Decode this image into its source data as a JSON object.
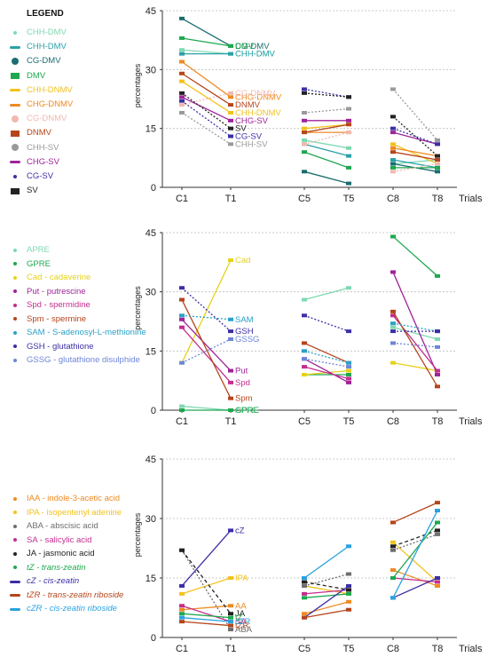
{
  "legend": {
    "title": "LEGEND"
  },
  "panels": [
    {
      "id": "p1",
      "legend_items": [
        {
          "label": "CHH-DMV",
          "color": "#7fd9b2",
          "symbol": "dot"
        },
        {
          "label": "CHH-DMV",
          "color": "#2aa1a7",
          "symbol": "dash"
        },
        {
          "label": "CG-DMV",
          "color": "#1b6d6f",
          "symbol": "bigdot"
        },
        {
          "label": "DMV",
          "color": "#1ea84f",
          "symbol": "square"
        },
        {
          "label": "CHH-DNMV",
          "color": "#f2c21c",
          "symbol": "dash"
        },
        {
          "label": "CHG-DNMV",
          "color": "#ee8a23",
          "symbol": "dash"
        },
        {
          "label": "CG-DNMV",
          "color": "#f0b9b0",
          "symbol": "bigdot"
        },
        {
          "label": "DNMV",
          "color": "#b5451b",
          "symbol": "square"
        },
        {
          "label": "CHH-SV",
          "color": "#9a9a9a",
          "symbol": "bigdot"
        },
        {
          "label": "CHG-SV",
          "color": "#a0239a",
          "symbol": "dash"
        },
        {
          "label": "CG-SV",
          "color": "#3b2fa6",
          "symbol": "dot"
        },
        {
          "label": "SV",
          "color": "#222222",
          "symbol": "square"
        }
      ]
    },
    {
      "id": "p2",
      "legend_items": [
        {
          "label": "APRE",
          "color": "#7fd9b2",
          "symbol": "dot"
        },
        {
          "label": "GPRE",
          "color": "#1ea84f",
          "symbol": "dot"
        },
        {
          "label": "Cad - cadaverine",
          "color": "#e6d21a",
          "symbol": "dot"
        },
        {
          "label": "Put - putrescine",
          "color": "#a0239a",
          "symbol": "dot"
        },
        {
          "label": "Spd - spermidine",
          "color": "#c42e8f",
          "symbol": "dot"
        },
        {
          "label": "Spm - spermine",
          "color": "#b5451b",
          "symbol": "dot"
        },
        {
          "label": "SAM - S-adenosyl-L-methionine",
          "color": "#2aa1c7",
          "symbol": "dot"
        },
        {
          "label": "GSH - glutathione",
          "color": "#3b2fa6",
          "symbol": "dot"
        },
        {
          "label": "GSSG - glutathione disulphide",
          "color": "#6e86d8",
          "symbol": "dot"
        }
      ]
    },
    {
      "id": "p3",
      "legend_items": [
        {
          "label": "IAA - indole-3-acetic acid",
          "color": "#ee8a23",
          "symbol": "dot"
        },
        {
          "label": "IPA - isopentenyl adenine",
          "color": "#f2c21c",
          "symbol": "dot"
        },
        {
          "label": "ABA - abscisic acid",
          "color": "#6e6e6e",
          "symbol": "dot"
        },
        {
          "label": "SA - salicylic acid",
          "color": "#c42e8f",
          "symbol": "dot"
        },
        {
          "label": "JA - jasmonic acid",
          "color": "#222222",
          "symbol": "dot"
        },
        {
          "label": "tZ - trans-zeatin",
          "color": "#1ea84f",
          "symbol": "dot"
        },
        {
          "label": "cZ - cis-zeatin",
          "color": "#3b2fa6",
          "symbol": "dash"
        },
        {
          "label": "tZR - trans-zeatin riboside",
          "color": "#b5451b",
          "symbol": "dash"
        },
        {
          "label": "cZR - cis-zeatin riboside",
          "color": "#2aa1e0",
          "symbol": "dash"
        }
      ]
    }
  ],
  "chart_data": [
    {
      "type": "line",
      "ylabel": "percentages",
      "xlabel": "Trials",
      "x": [
        "C1",
        "T1",
        "C5",
        "T5",
        "C8",
        "T8"
      ],
      "ylim": [
        0,
        45
      ],
      "yticks": [
        0,
        15,
        30,
        45
      ],
      "grid": true,
      "series": [
        {
          "name": "CHH-DMV",
          "color": "#7fd9b2",
          "style": "solid",
          "values": [
            35,
            34,
            12,
            10,
            6,
            7
          ],
          "label": "CHH-DMV"
        },
        {
          "name": "CHH-DMV",
          "color": "#2aa1a7",
          "style": "solid",
          "values": [
            34,
            34,
            11,
            8,
            7,
            5
          ],
          "label": "CHH-DMV"
        },
        {
          "name": "CG-DMV",
          "color": "#1b6d6f",
          "style": "solid",
          "values": [
            43,
            36,
            4,
            1,
            6,
            4
          ],
          "label": "CG-DMV"
        },
        {
          "name": "DMV",
          "color": "#1ea84f",
          "style": "solid",
          "values": [
            38,
            36,
            9,
            5,
            5,
            5
          ],
          "label": "DMV"
        },
        {
          "name": "CHH-DNMV",
          "color": "#f2c21c",
          "style": "solid",
          "values": [
            27,
            19,
            15,
            16,
            11,
            6
          ],
          "label": "CHH-DNMV"
        },
        {
          "name": "CHG-DNMV",
          "color": "#ee8a23",
          "style": "solid",
          "values": [
            32,
            23,
            14,
            14,
            10,
            8
          ],
          "label": "CHG-DNMV"
        },
        {
          "name": "CG-DNMV",
          "color": "#f0b9b0",
          "style": "dotted",
          "values": [
            21,
            24,
            11,
            14,
            4,
            6
          ],
          "label": "CG-DNMV"
        },
        {
          "name": "DNMV",
          "color": "#b5451b",
          "style": "solid",
          "values": [
            29,
            21,
            14,
            16,
            9,
            7
          ],
          "label": "DNMV"
        },
        {
          "name": "CHH-SV",
          "color": "#9a9a9a",
          "style": "dotted",
          "values": [
            19,
            11,
            19,
            20,
            25,
            12
          ],
          "label": "CHH-SV"
        },
        {
          "name": "CHG-SV",
          "color": "#a0239a",
          "style": "solid",
          "values": [
            23,
            17,
            17,
            17,
            14,
            11
          ],
          "label": "CHG-SV"
        },
        {
          "name": "CG-SV",
          "color": "#3b2fa6",
          "style": "dotted",
          "values": [
            22,
            13,
            25,
            23,
            15,
            11
          ],
          "label": "CG-SV"
        },
        {
          "name": "SV",
          "color": "#222222",
          "style": "dotted",
          "values": [
            24,
            15,
            24,
            23,
            18,
            8
          ],
          "label": "SV"
        }
      ]
    },
    {
      "type": "line",
      "ylabel": "percentages",
      "xlabel": "Trials",
      "x": [
        "C1",
        "T1",
        "C5",
        "T5",
        "C8",
        "T8"
      ],
      "ylim": [
        0,
        45
      ],
      "yticks": [
        0,
        15,
        30,
        45
      ],
      "grid": true,
      "series": [
        {
          "name": "APRE",
          "color": "#7fd9b2",
          "style": "solid",
          "values": [
            1,
            0,
            28,
            31,
            21,
            18
          ],
          "label": "APRE"
        },
        {
          "name": "GPRE",
          "color": "#1ea84f",
          "style": "solid",
          "values": [
            0,
            0,
            9,
            9,
            44,
            34
          ],
          "label": "GPRE"
        },
        {
          "name": "Cad",
          "color": "#e6d21a",
          "style": "solid",
          "values": [
            12,
            38,
            9,
            10,
            12,
            10
          ],
          "label": "Cad"
        },
        {
          "name": "Put",
          "color": "#a0239a",
          "style": "solid",
          "values": [
            23,
            10,
            13,
            7,
            35,
            9
          ],
          "label": "Put"
        },
        {
          "name": "Spd",
          "color": "#c42e8f",
          "style": "solid",
          "values": [
            21,
            7,
            11,
            8,
            24,
            10
          ],
          "label": "Spd"
        },
        {
          "name": "Spm",
          "color": "#b5451b",
          "style": "solid",
          "values": [
            28,
            3,
            17,
            12,
            25,
            6
          ],
          "label": "Spm"
        },
        {
          "name": "SAM",
          "color": "#2aa1c7",
          "style": "dotted",
          "values": [
            24,
            23,
            15,
            12,
            22,
            20
          ],
          "label": "SAM"
        },
        {
          "name": "GSH",
          "color": "#3b2fa6",
          "style": "dotted",
          "values": [
            31,
            20,
            24,
            20,
            20,
            20
          ],
          "label": "GSH"
        },
        {
          "name": "GSSG",
          "color": "#6e86d8",
          "style": "dotted",
          "values": [
            12,
            18,
            13,
            11,
            17,
            16
          ],
          "label": "GSSG"
        }
      ]
    },
    {
      "type": "line",
      "ylabel": "percentages",
      "xlabel": "Trials",
      "x": [
        "C1",
        "T1",
        "C5",
        "T5",
        "C8",
        "T8"
      ],
      "ylim": [
        0,
        45
      ],
      "yticks": [
        0,
        15,
        30,
        45
      ],
      "grid": true,
      "series": [
        {
          "name": "IAA",
          "color": "#ee8a23",
          "style": "solid",
          "values": [
            7,
            8,
            6,
            9,
            17,
            13
          ],
          "label": "AA"
        },
        {
          "name": "IPA",
          "color": "#f2c21c",
          "style": "solid",
          "values": [
            11,
            15,
            13,
            11,
            24,
            14
          ],
          "label": "IPA"
        },
        {
          "name": "ABA",
          "color": "#6e6e6e",
          "style": "dotted",
          "values": [
            22,
            2,
            13,
            16,
            22,
            26
          ],
          "label": "ABA"
        },
        {
          "name": "SA",
          "color": "#c42e8f",
          "style": "solid",
          "values": [
            8,
            4,
            11,
            12,
            15,
            14
          ],
          "label": "SA"
        },
        {
          "name": "JA",
          "color": "#222222",
          "style": "dashed",
          "values": [
            22,
            6,
            14,
            12,
            23,
            27
          ],
          "label": "JA"
        },
        {
          "name": "tZ",
          "color": "#1ea84f",
          "style": "solid",
          "values": [
            6,
            5,
            10,
            11,
            15,
            29
          ],
          "label": "tZ"
        },
        {
          "name": "cZ",
          "color": "#3b2fa6",
          "style": "solid",
          "values": [
            13,
            27,
            5,
            13,
            10,
            15
          ],
          "label": "cZ"
        },
        {
          "name": "tZR",
          "color": "#b5451b",
          "style": "solid",
          "values": [
            4,
            3,
            5,
            7,
            29,
            34
          ],
          "label": "tZR"
        },
        {
          "name": "cZR",
          "color": "#2aa1e0",
          "style": "solid",
          "values": [
            5,
            4,
            15,
            23,
            10,
            32
          ],
          "label": "cZR"
        }
      ]
    }
  ]
}
